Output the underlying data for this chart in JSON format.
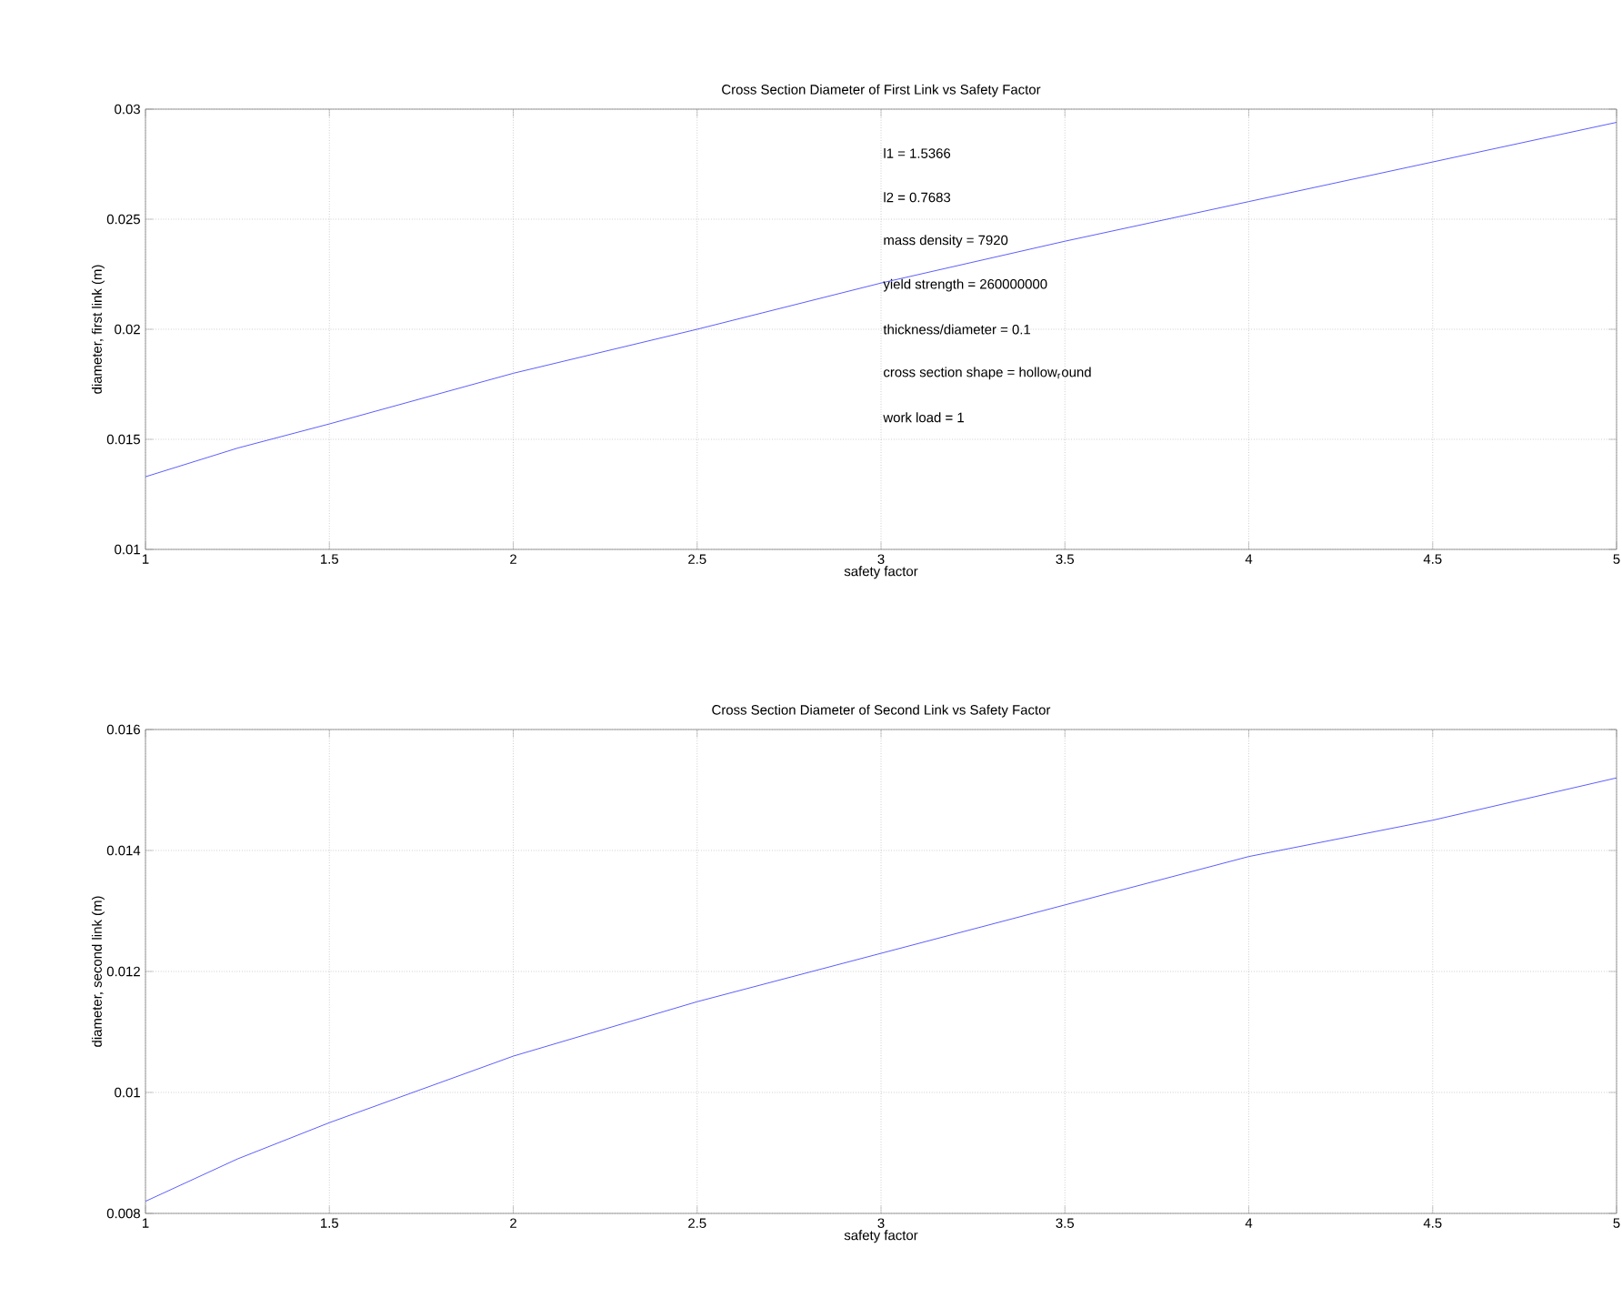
{
  "chart_data": [
    {
      "type": "line",
      "title": "Cross Section Diameter of First Link vs Safety Factor",
      "xlabel": "safety factor",
      "ylabel": "diameter, first link (m)",
      "x": [
        1,
        1.25,
        1.5,
        2,
        2.5,
        3,
        3.5,
        4,
        4.5,
        5
      ],
      "series": [
        {
          "color": "#5c5cff",
          "values": [
            0.0133,
            0.0146,
            0.0157,
            0.018,
            0.02,
            0.0221,
            0.024,
            0.0258,
            0.0276,
            0.0294
          ]
        }
      ],
      "xlim": [
        1,
        5
      ],
      "ylim": [
        0.01,
        0.03
      ],
      "xticks": [
        1,
        1.5,
        2,
        2.5,
        3,
        3.5,
        4,
        4.5,
        5
      ],
      "yticks": [
        0.01,
        0.015,
        0.02,
        0.025,
        0.03
      ],
      "grid": true,
      "line_style": "solid",
      "marker": "none",
      "annotations": [
        "l1 = 1.5366",
        "l2 = 0.7683",
        "mass density = 7920",
        "yield strength = 260000000",
        "thickness/diameter = 0.1",
        "cross section shape = hollow$_{r}$ound",
        "work load = 1"
      ]
    },
    {
      "type": "line",
      "title": "Cross Section Diameter of Second Link vs Safety Factor",
      "xlabel": "safety factor",
      "ylabel": "diameter, second link (m)",
      "x": [
        1,
        1.25,
        1.5,
        2,
        2.5,
        3,
        3.5,
        4,
        4.5,
        5
      ],
      "series": [
        {
          "color": "#5c5cff",
          "values": [
            0.0082,
            0.0089,
            0.0095,
            0.0106,
            0.0115,
            0.0123,
            0.0131,
            0.0139,
            0.0145,
            0.0152
          ]
        }
      ],
      "xlim": [
        1,
        5
      ],
      "ylim": [
        0.008,
        0.016
      ],
      "xticks": [
        1,
        1.5,
        2,
        2.5,
        3,
        3.5,
        4,
        4.5,
        5
      ],
      "yticks": [
        0.008,
        0.01,
        0.012,
        0.014,
        0.016
      ],
      "grid": true,
      "line_style": "solid",
      "marker": "none"
    }
  ]
}
